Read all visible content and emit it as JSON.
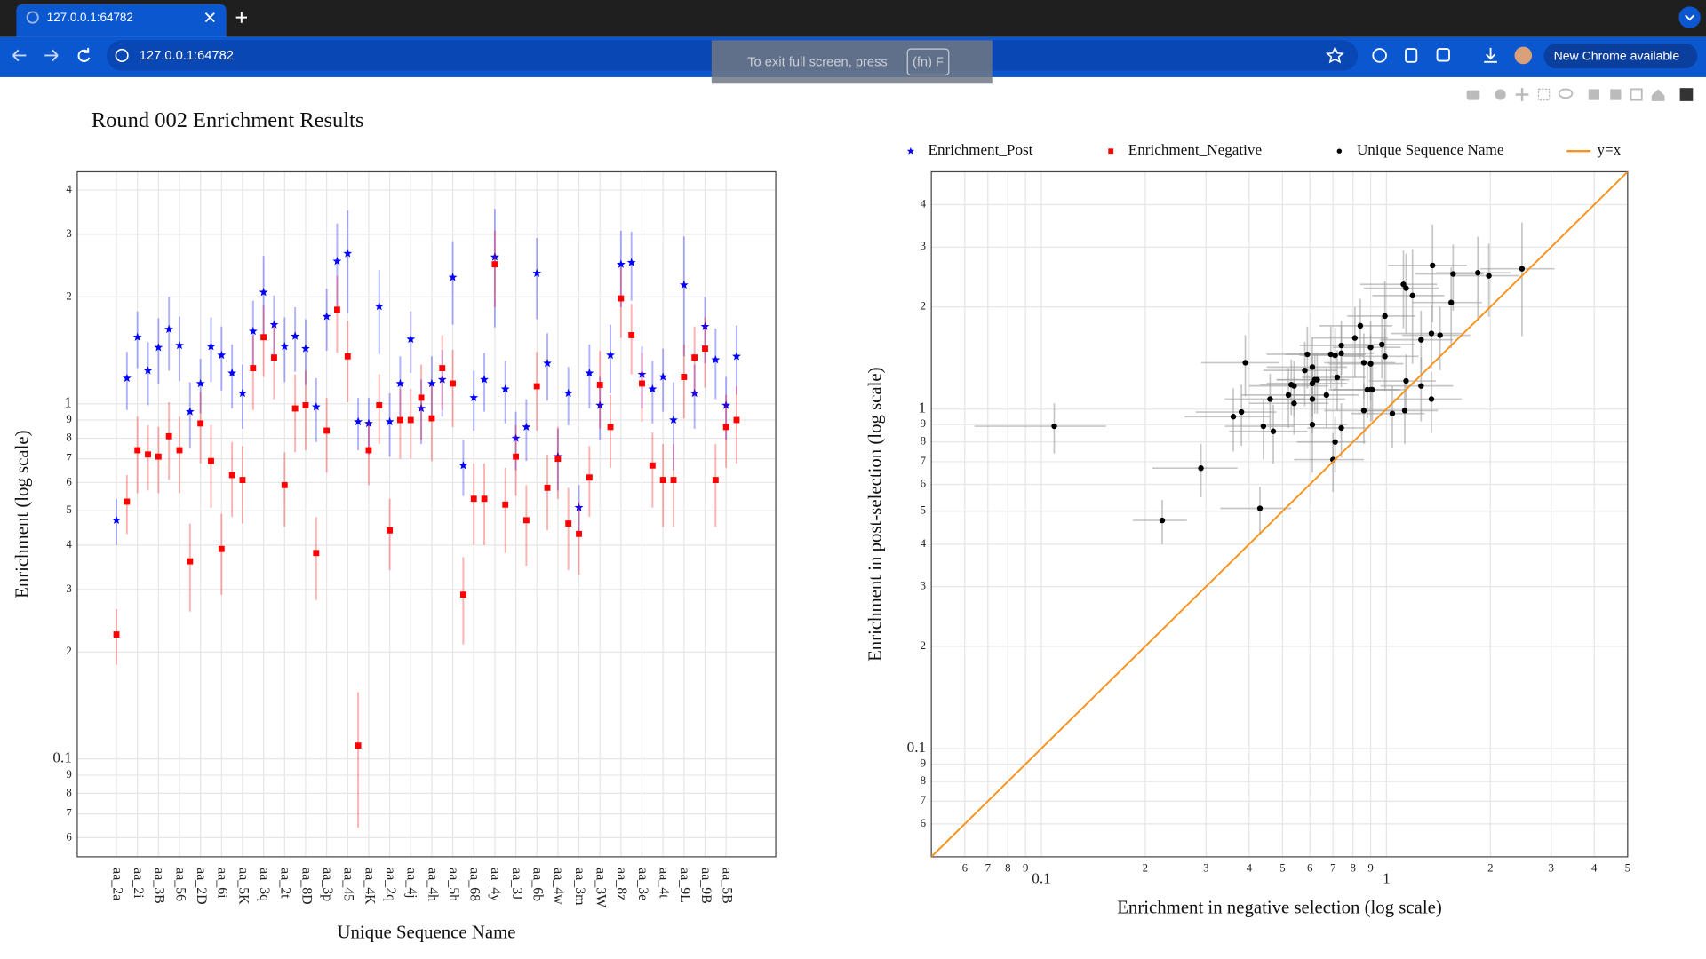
{
  "browser": {
    "tab_title": "127.0.0.1:64782",
    "url": "127.0.0.1:64782",
    "update_button": "New Chrome available",
    "fullscreen_hint": "To exit full screen, press",
    "fullscreen_key": "(fn) F"
  },
  "chart_data": [
    {
      "type": "errorbar",
      "title": "Round 002 Enrichment Results",
      "xlabel": "Unique Sequence Name",
      "ylabel": "Enrichment (log scale)",
      "log_y": true,
      "grid": true,
      "ylim": [
        0.053,
        4.5
      ],
      "yticks": [
        {
          "value": 0.06,
          "label": "6"
        },
        {
          "value": 0.07,
          "label": "7"
        },
        {
          "value": 0.08,
          "label": "8"
        },
        {
          "value": 0.09,
          "label": "9"
        },
        0.1,
        {
          "value": 0.2,
          "label": "2"
        },
        {
          "value": 0.3,
          "label": "3"
        },
        {
          "value": 0.4,
          "label": "4"
        },
        {
          "value": 0.5,
          "label": "5"
        },
        {
          "value": 0.6,
          "label": "6"
        },
        {
          "value": 0.7,
          "label": "7"
        },
        {
          "value": 0.8,
          "label": "8"
        },
        {
          "value": 0.9,
          "label": "9"
        },
        1,
        2,
        3,
        4
      ],
      "categories": [
        "aa_2a",
        null,
        "aa_2i",
        null,
        "aa_3B",
        null,
        "aa_56",
        null,
        "aa_2D",
        null,
        "aa_6i",
        null,
        "aa_5K",
        null,
        "aa_3q",
        null,
        "aa_2t",
        null,
        "aa_8D",
        null,
        "aa_3p",
        null,
        "aa_45",
        null,
        "aa_4K",
        null,
        "aa_2q",
        null,
        "aa_4j",
        null,
        "aa_4h",
        null,
        "aa_5h",
        null,
        "aa_68",
        null,
        "aa_4y",
        null,
        "aa_3J",
        null,
        "aa_6b",
        null,
        "aa_4w",
        null,
        "aa_3m",
        null,
        "aa_3W",
        null,
        "aa_8z",
        null,
        "aa_3e",
        null,
        "aa_4t",
        null,
        "aa_9L",
        null,
        "aa_9B",
        null,
        "aa_5B",
        null
      ],
      "series": [
        {
          "name": "Enrichment_Post",
          "color": "#0000ff",
          "marker": "star",
          "values": [
            0.47,
            1.18,
            1.54,
            1.24,
            1.44,
            1.62,
            1.46,
            0.95,
            1.14,
            1.45,
            1.37,
            1.22,
            1.07,
            1.6,
            2.06,
            1.67,
            1.45,
            1.55,
            1.43,
            0.98,
            1.76,
            2.52,
            2.65,
            0.89,
            0.88,
            1.88,
            0.89,
            1.14,
            1.52,
            0.97,
            1.14,
            1.17,
            2.27,
            0.67,
            1.04,
            1.17,
            2.59,
            1.1,
            0.8,
            0.86,
            2.33,
            1.3,
            0.71,
            1.07,
            0.51,
            1.22,
            0.99,
            1.37,
            2.47,
            2.5,
            1.21,
            1.1,
            1.19,
            0.9,
            2.16,
            1.07,
            1.65,
            1.33,
            0.99,
            1.36
          ],
          "errors": [
            0.07,
            0.22,
            0.28,
            0.25,
            0.3,
            0.38,
            0.3,
            0.2,
            0.2,
            0.3,
            0.28,
            0.25,
            0.22,
            0.35,
            0.55,
            0.35,
            0.3,
            0.32,
            0.3,
            0.2,
            0.35,
            0.7,
            0.85,
            0.15,
            0.16,
            0.5,
            0.18,
            0.22,
            0.3,
            0.2,
            0.22,
            0.25,
            0.6,
            0.12,
            0.2,
            0.22,
            0.95,
            0.22,
            0.15,
            0.17,
            0.6,
            0.28,
            0.14,
            0.2,
            0.08,
            0.25,
            0.2,
            0.3,
            0.6,
            0.55,
            0.24,
            0.22,
            0.24,
            0.25,
            0.8,
            0.22,
            0.35,
            0.3,
            0.2,
            0.3
          ]
        },
        {
          "name": "Enrichment_Negative",
          "color": "#ff0000",
          "marker": "square",
          "values": [
            0.224,
            0.53,
            0.74,
            0.72,
            0.71,
            0.81,
            0.74,
            0.36,
            0.88,
            0.69,
            0.39,
            0.63,
            0.61,
            1.26,
            1.54,
            1.35,
            0.59,
            0.97,
            0.99,
            0.38,
            0.84,
            1.84,
            1.36,
            0.109,
            0.74,
            0.99,
            0.44,
            0.9,
            0.9,
            1.04,
            0.91,
            1.26,
            1.14,
            0.29,
            0.54,
            0.54,
            2.47,
            0.52,
            0.71,
            0.47,
            1.12,
            0.58,
            0.7,
            0.46,
            0.43,
            0.62,
            1.13,
            0.86,
            1.98,
            1.56,
            1.14,
            0.67,
            0.61,
            0.61,
            1.19,
            1.35,
            1.43,
            0.61,
            0.86,
            0.9
          ],
          "errors": [
            0.04,
            0.1,
            0.18,
            0.15,
            0.15,
            0.2,
            0.18,
            0.1,
            0.2,
            0.18,
            0.1,
            0.15,
            0.15,
            0.3,
            0.35,
            0.32,
            0.14,
            0.24,
            0.25,
            0.1,
            0.2,
            0.45,
            0.35,
            0.045,
            0.15,
            0.22,
            0.1,
            0.2,
            0.2,
            0.25,
            0.22,
            0.3,
            0.28,
            0.08,
            0.14,
            0.14,
            0.6,
            0.14,
            0.16,
            0.12,
            0.28,
            0.14,
            0.16,
            0.12,
            0.1,
            0.14,
            0.28,
            0.2,
            0.45,
            0.35,
            0.25,
            0.16,
            0.16,
            0.16,
            0.28,
            0.3,
            0.32,
            0.16,
            0.2,
            0.22
          ]
        }
      ]
    },
    {
      "type": "scatter",
      "xlabel": "Enrichment in negative selection (log scale)",
      "ylabel": "Enrichment in post-selection (log scale)",
      "log_x": true,
      "log_y": true,
      "grid": true,
      "xlim": [
        0.048,
        5
      ],
      "ylim": [
        0.048,
        5
      ],
      "error_color": "#a0a0a0",
      "xticks": [
        {
          "value": 0.06,
          "label": "6"
        },
        {
          "value": 0.07,
          "label": "7"
        },
        {
          "value": 0.08,
          "label": "8"
        },
        {
          "value": 0.09,
          "label": "9"
        },
        0.1,
        {
          "value": 0.2,
          "label": "2"
        },
        {
          "value": 0.3,
          "label": "3"
        },
        {
          "value": 0.4,
          "label": "4"
        },
        {
          "value": 0.5,
          "label": "5"
        },
        {
          "value": 0.6,
          "label": "6"
        },
        {
          "value": 0.7,
          "label": "7"
        },
        {
          "value": 0.8,
          "label": "8"
        },
        {
          "value": 0.9,
          "label": "9"
        },
        1,
        2,
        3,
        4,
        5
      ],
      "yticks": [
        {
          "value": 0.06,
          "label": "6"
        },
        {
          "value": 0.07,
          "label": "7"
        },
        {
          "value": 0.08,
          "label": "8"
        },
        {
          "value": 0.09,
          "label": "9"
        },
        0.1,
        {
          "value": 0.2,
          "label": "2"
        },
        {
          "value": 0.3,
          "label": "3"
        },
        {
          "value": 0.4,
          "label": "4"
        },
        {
          "value": 0.5,
          "label": "5"
        },
        {
          "value": 0.6,
          "label": "6"
        },
        {
          "value": 0.7,
          "label": "7"
        },
        {
          "value": 0.8,
          "label": "8"
        },
        {
          "value": 0.9,
          "label": "9"
        },
        1,
        2,
        3,
        4
      ],
      "series": [
        {
          "name": "Unique Sequence Name",
          "color": "#000000",
          "marker": "circle",
          "x": [
            0.224,
            0.53,
            0.74,
            0.72,
            0.71,
            0.81,
            0.74,
            0.36,
            0.88,
            0.69,
            0.39,
            0.63,
            0.61,
            1.26,
            1.54,
            1.35,
            0.59,
            0.97,
            0.99,
            0.38,
            0.84,
            1.84,
            1.36,
            0.109,
            0.74,
            0.99,
            0.44,
            0.9,
            0.9,
            1.04,
            0.91,
            1.26,
            1.14,
            0.29,
            0.54,
            0.54,
            2.47,
            0.52,
            0.71,
            0.47,
            1.12,
            0.58,
            0.7,
            0.46,
            0.43,
            0.62,
            1.13,
            0.86,
            1.98,
            1.56,
            1.14,
            0.67,
            0.61,
            0.61,
            1.19,
            1.35,
            1.43,
            0.61,
            0.86,
            0.9
          ],
          "y": [
            0.47,
            1.18,
            1.54,
            1.24,
            1.44,
            1.62,
            1.46,
            0.95,
            1.14,
            1.45,
            1.37,
            1.22,
            1.07,
            1.6,
            2.06,
            1.67,
            1.45,
            1.55,
            1.43,
            0.98,
            1.76,
            2.52,
            2.65,
            0.89,
            0.88,
            1.88,
            0.89,
            1.14,
            1.52,
            0.97,
            1.14,
            1.17,
            2.27,
            0.67,
            1.04,
            1.17,
            2.59,
            1.1,
            0.8,
            0.86,
            2.33,
            1.3,
            0.71,
            1.07,
            0.51,
            1.22,
            0.99,
            1.37,
            2.47,
            2.5,
            1.21,
            1.1,
            1.19,
            0.9,
            2.16,
            1.07,
            1.65,
            1.33,
            0.99,
            1.36
          ],
          "x_errors": [
            0.04,
            0.1,
            0.18,
            0.15,
            0.15,
            0.2,
            0.18,
            0.1,
            0.2,
            0.18,
            0.1,
            0.15,
            0.15,
            0.3,
            0.35,
            0.32,
            0.14,
            0.24,
            0.25,
            0.1,
            0.2,
            0.45,
            0.35,
            0.045,
            0.15,
            0.22,
            0.1,
            0.2,
            0.2,
            0.25,
            0.22,
            0.3,
            0.28,
            0.08,
            0.14,
            0.14,
            0.6,
            0.14,
            0.16,
            0.12,
            0.28,
            0.14,
            0.16,
            0.12,
            0.1,
            0.14,
            0.28,
            0.2,
            0.45,
            0.35,
            0.25,
            0.16,
            0.16,
            0.16,
            0.28,
            0.3,
            0.32,
            0.16,
            0.2,
            0.22
          ],
          "y_errors": [
            0.07,
            0.22,
            0.28,
            0.25,
            0.3,
            0.38,
            0.3,
            0.2,
            0.2,
            0.3,
            0.28,
            0.25,
            0.22,
            0.35,
            0.55,
            0.35,
            0.3,
            0.32,
            0.3,
            0.2,
            0.35,
            0.7,
            0.85,
            0.15,
            0.16,
            0.5,
            0.18,
            0.22,
            0.3,
            0.2,
            0.22,
            0.25,
            0.6,
            0.12,
            0.2,
            0.22,
            0.95,
            0.22,
            0.15,
            0.17,
            0.6,
            0.28,
            0.14,
            0.2,
            0.08,
            0.25,
            0.2,
            0.3,
            0.6,
            0.55,
            0.24,
            0.22,
            0.24,
            0.25,
            0.8,
            0.22,
            0.35,
            0.3,
            0.2,
            0.3
          ]
        },
        {
          "name": "y=x",
          "color": "#f7931e",
          "mode": "line",
          "x": [
            0.048,
            5
          ],
          "y": [
            0.048,
            5
          ]
        }
      ]
    }
  ]
}
